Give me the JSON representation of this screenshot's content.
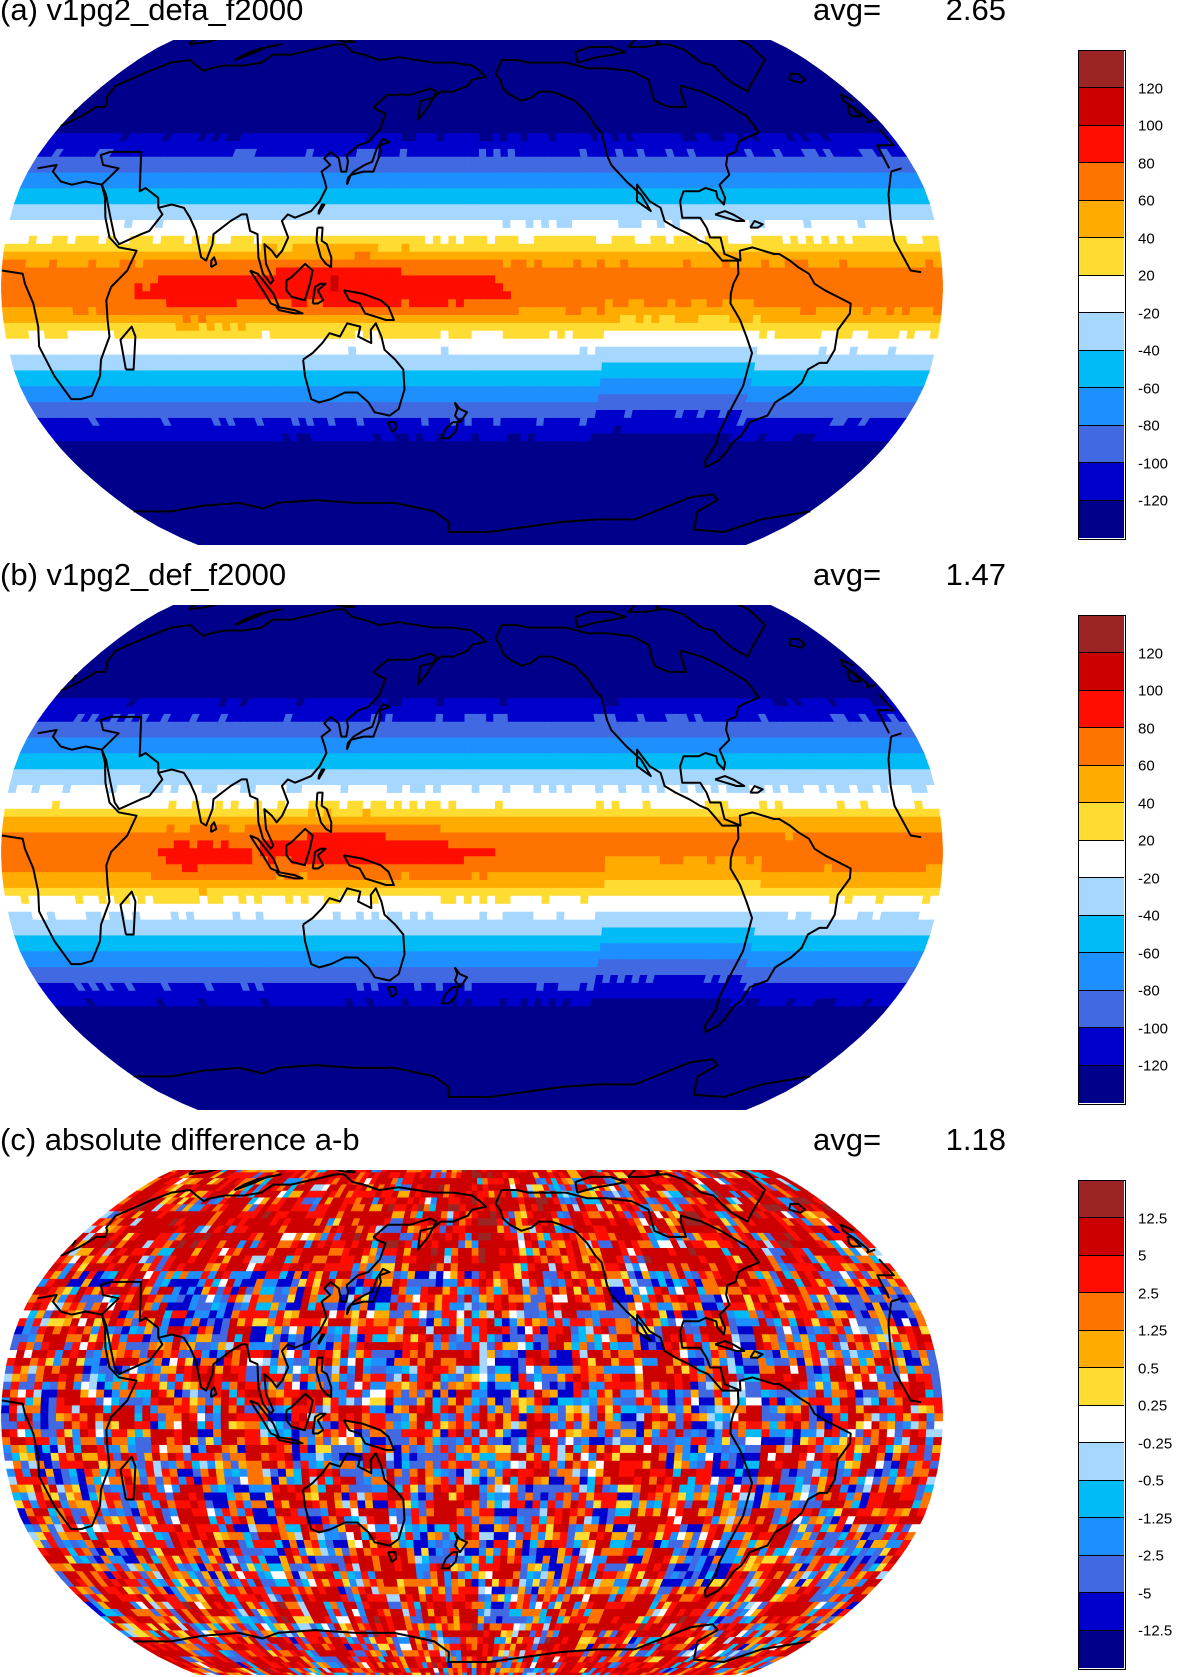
{
  "panels": [
    {
      "title": "(a) v1pg2_defa_f2000",
      "avg_label": "avg=",
      "avg_value": "2.65",
      "field": "a",
      "colorbar_labels": [
        "120",
        "100",
        "80",
        "60",
        "40",
        "20",
        "-20",
        "-40",
        "-60",
        "-80",
        "-100",
        "-120"
      ]
    },
    {
      "title": "(b) v1pg2_def_f2000",
      "avg_label": "avg=",
      "avg_value": "1.47",
      "field": "b",
      "colorbar_labels": [
        "120",
        "100",
        "80",
        "60",
        "40",
        "20",
        "-20",
        "-40",
        "-60",
        "-80",
        "-100",
        "-120"
      ]
    },
    {
      "title": "(c) absolute difference a-b",
      "avg_label": "avg=",
      "avg_value": "1.18",
      "field": "diff",
      "colorbar_labels": [
        "12.5",
        "5",
        "2.5",
        "1.25",
        "0.5",
        "0.25",
        "-0.25",
        "-0.5",
        "-1.25",
        "-2.5",
        "-5",
        "-12.5"
      ]
    }
  ],
  "colorbar_colors": [
    "#9b2424",
    "#cd0000",
    "#ff0d00",
    "#ff7300",
    "#ffab00",
    "#ffdc32",
    "#ffffff",
    "#a6d7ff",
    "#00bbf5",
    "#1e8fff",
    "#4169e1",
    "#0000cd",
    "#00008b"
  ],
  "projection": "robinson",
  "coastline_color": "#000000"
}
